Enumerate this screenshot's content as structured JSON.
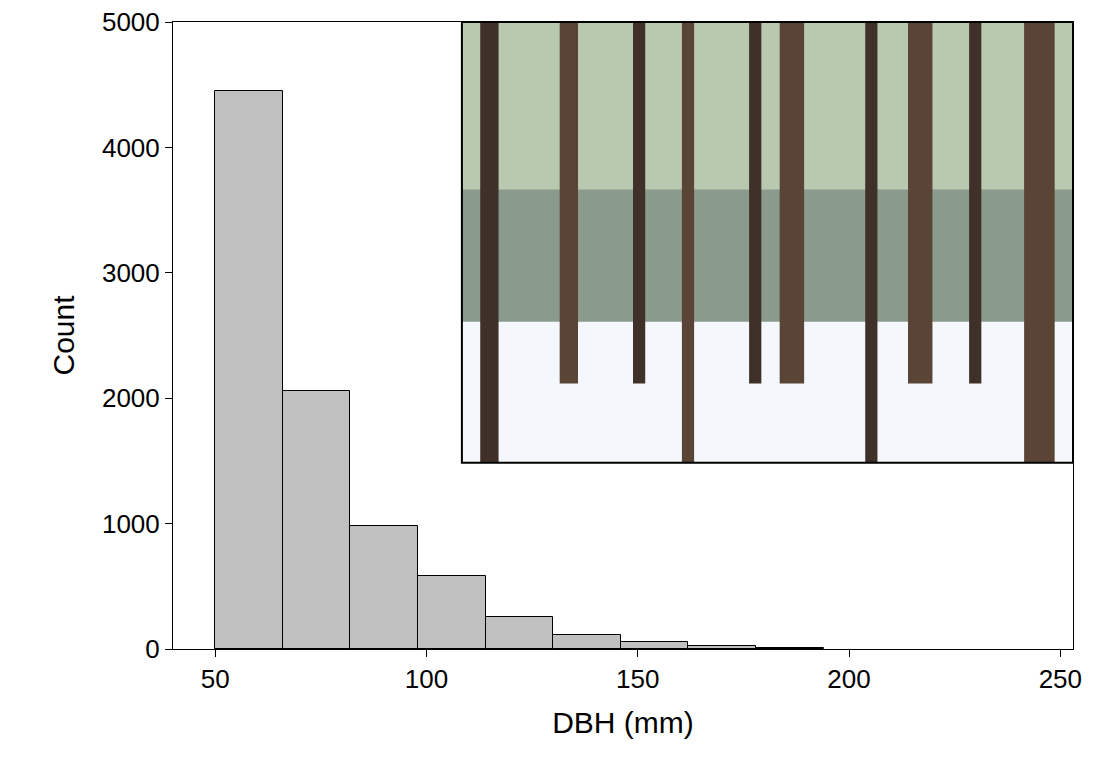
{
  "chart_data": {
    "type": "histogram",
    "x_label": "DBH (mm)",
    "y_label": "Count",
    "bins": [
      50,
      66,
      82,
      98,
      114,
      130,
      146,
      162,
      178,
      194
    ],
    "values": [
      4450,
      2057,
      981,
      582,
      255,
      112,
      56,
      24,
      8
    ],
    "color": "#c0c0c0",
    "xlim": [
      40,
      253
    ],
    "xticks": [
      50,
      100,
      150,
      200,
      250
    ],
    "ylim": [
      0,
      5000
    ],
    "yticks": [
      0,
      1000,
      2000,
      3000,
      4000,
      5000
    ],
    "grid": false
  }
}
